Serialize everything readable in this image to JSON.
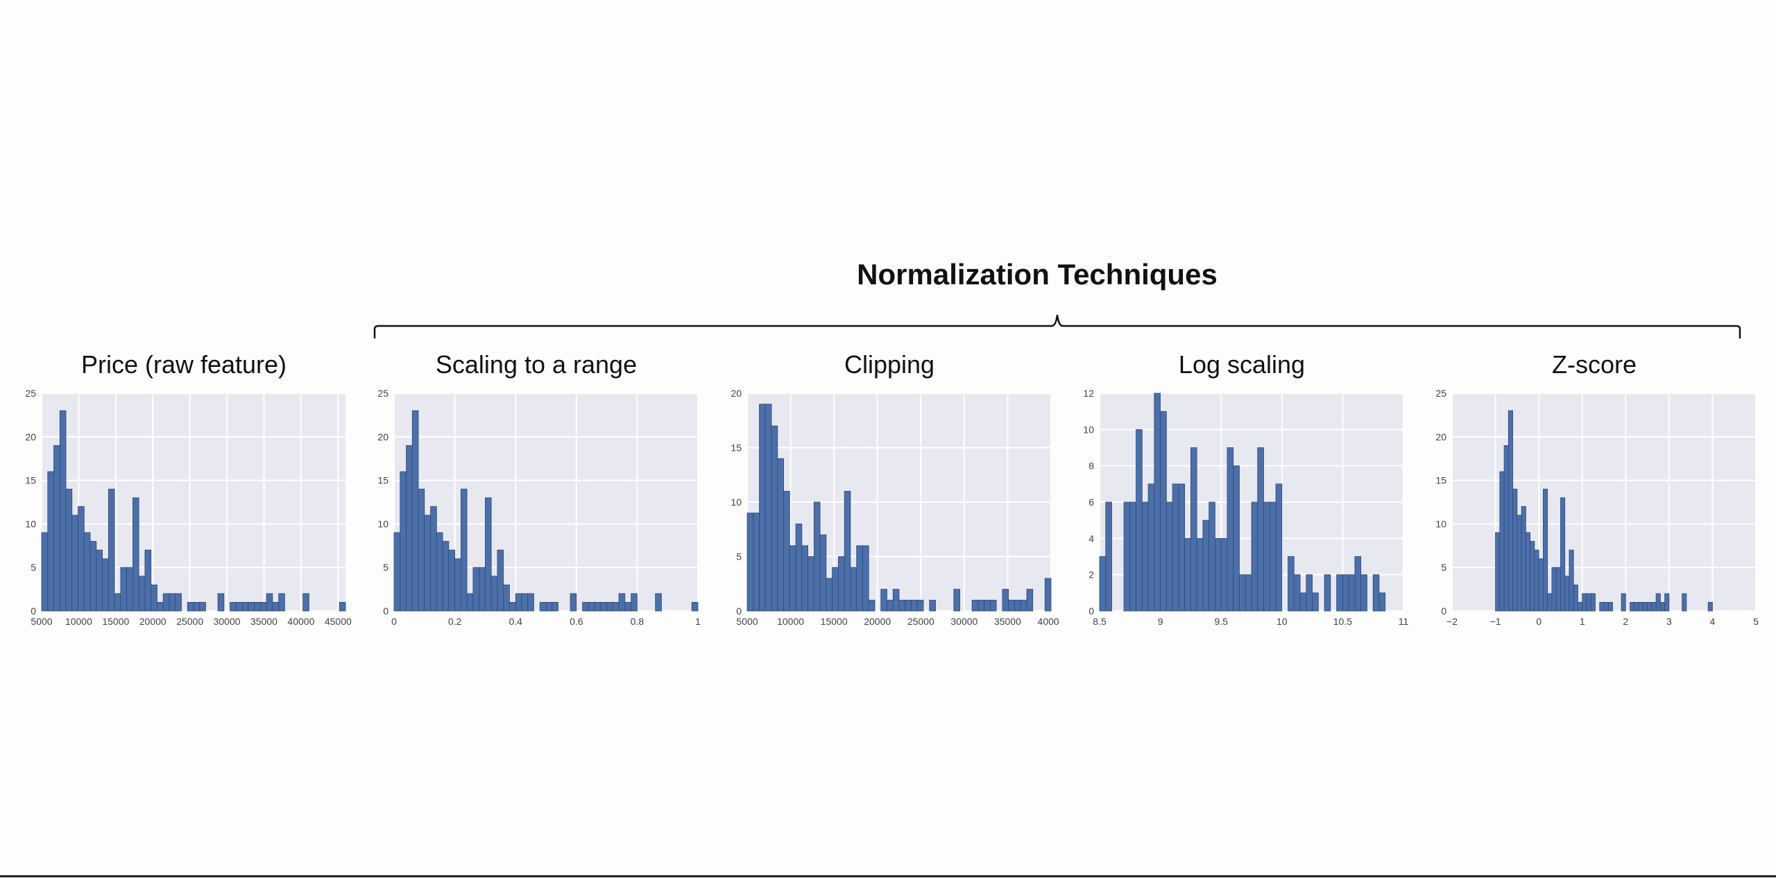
{
  "header": {
    "title": "Normalization Techniques"
  },
  "style": {
    "plot_bg": "#e8e8f0",
    "bar_fill": "#4c6fa8",
    "bar_edge": "#2d4a80",
    "grid": "#ffffff"
  },
  "chart_data": [
    {
      "type": "bar",
      "title": "Price (raw feature)",
      "xlim": [
        5000,
        46000
      ],
      "ylim": [
        0,
        25
      ],
      "xticks": [
        5000,
        10000,
        15000,
        20000,
        25000,
        30000,
        35000,
        40000,
        45000
      ],
      "yticks": [
        0,
        5,
        10,
        15,
        20,
        25
      ],
      "bin_start": 5000,
      "bin_width": 820,
      "values": [
        9,
        16,
        19,
        23,
        14,
        11,
        12,
        9,
        8,
        7,
        6,
        14,
        2,
        5,
        5,
        13,
        4,
        7,
        3,
        1,
        2,
        2,
        2,
        0,
        1,
        1,
        1,
        0,
        0,
        2,
        0,
        1,
        1,
        1,
        1,
        1,
        1,
        2,
        1,
        2,
        0,
        0,
        0,
        2,
        0,
        0,
        0,
        0,
        0,
        1
      ]
    },
    {
      "type": "bar",
      "title": "Scaling to a range",
      "xlim": [
        0.0,
        1.0
      ],
      "ylim": [
        0,
        25
      ],
      "xticks": [
        0.0,
        0.2,
        0.4,
        0.6,
        0.8,
        1.0
      ],
      "yticks": [
        0,
        5,
        10,
        15,
        20,
        25
      ],
      "bin_start": 0.0,
      "bin_width": 0.02,
      "values": [
        9,
        16,
        19,
        23,
        14,
        11,
        12,
        9,
        8,
        7,
        6,
        14,
        2,
        5,
        5,
        13,
        4,
        7,
        3,
        1,
        2,
        2,
        2,
        0,
        1,
        1,
        1,
        0,
        0,
        2,
        0,
        1,
        1,
        1,
        1,
        1,
        1,
        2,
        1,
        2,
        0,
        0,
        0,
        2,
        0,
        0,
        0,
        0,
        0,
        1
      ]
    },
    {
      "type": "bar",
      "title": "Clipping",
      "xlim": [
        5000,
        40000
      ],
      "ylim": [
        0,
        20
      ],
      "xticks": [
        5000,
        10000,
        15000,
        20000,
        25000,
        30000,
        35000,
        40000
      ],
      "yticks": [
        0,
        5,
        10,
        15,
        20
      ],
      "bin_start": 5000,
      "bin_width": 700,
      "values": [
        9,
        9,
        19,
        19,
        17,
        14,
        11,
        6,
        8,
        6,
        5,
        10,
        7,
        3,
        4,
        5,
        11,
        4,
        6,
        6,
        1,
        0,
        2,
        1,
        2,
        1,
        1,
        1,
        1,
        0,
        1,
        0,
        0,
        0,
        2,
        0,
        0,
        1,
        1,
        1,
        1,
        0,
        2,
        1,
        1,
        1,
        2,
        0,
        0,
        3
      ]
    },
    {
      "type": "bar",
      "title": "Log scaling",
      "xlim": [
        8.5,
        11.0
      ],
      "ylim": [
        0,
        12
      ],
      "xticks": [
        8.5,
        9.0,
        9.5,
        10.0,
        10.5,
        11.0
      ],
      "yticks": [
        0,
        2,
        4,
        6,
        8,
        10,
        12
      ],
      "bin_start": 8.5,
      "bin_width": 0.05,
      "values": [
        3,
        6,
        0,
        0,
        6,
        6,
        10,
        6,
        7,
        12,
        11,
        6,
        7,
        7,
        4,
        9,
        4,
        5,
        6,
        4,
        4,
        9,
        8,
        2,
        2,
        6,
        9,
        6,
        6,
        7,
        0,
        3,
        2,
        1,
        2,
        1,
        0,
        2,
        0,
        2,
        2,
        2,
        3,
        2,
        0,
        2,
        1,
        0,
        0,
        0
      ]
    },
    {
      "type": "bar",
      "title": "Z-score",
      "xlim": [
        -2,
        5
      ],
      "ylim": [
        0,
        25
      ],
      "xticks": [
        -2,
        -1,
        0,
        1,
        2,
        3,
        4,
        5
      ],
      "yticks": [
        0,
        5,
        10,
        15,
        20,
        25
      ],
      "bin_start": -1.0,
      "bin_width": 0.1,
      "values": [
        9,
        16,
        19,
        23,
        14,
        11,
        12,
        9,
        8,
        7,
        6,
        14,
        2,
        5,
        5,
        13,
        4,
        7,
        3,
        1,
        2,
        2,
        2,
        0,
        1,
        1,
        1,
        0,
        0,
        2,
        0,
        1,
        1,
        1,
        1,
        1,
        1,
        2,
        1,
        2,
        0,
        0,
        0,
        2,
        0,
        0,
        0,
        0,
        0,
        1
      ]
    }
  ]
}
